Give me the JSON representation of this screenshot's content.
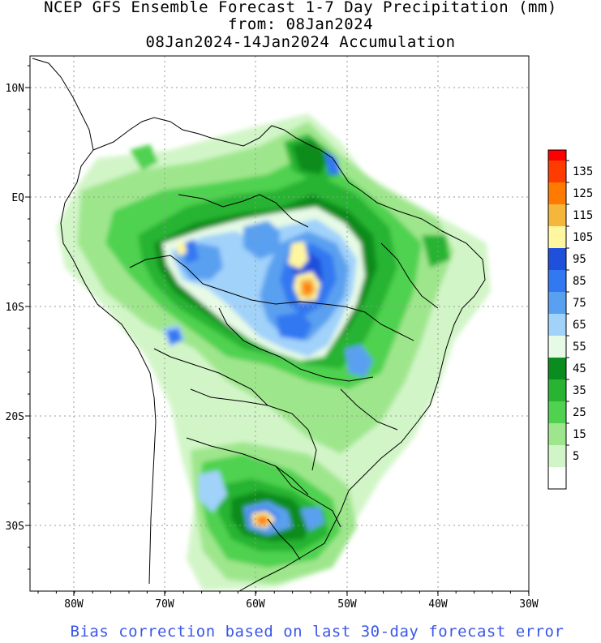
{
  "title": {
    "line1": "NCEP GFS Ensemble Forecast 1-7 Day Precipitation (mm)",
    "line2": "from: 08Jan2024",
    "line3": "08Jan2024-14Jan2024 Accumulation"
  },
  "footer": "Bias correction based on last 30-day forecast error",
  "axes": {
    "lon_labels": [
      "80W",
      "70W",
      "60W",
      "50W",
      "40W",
      "30W"
    ],
    "lat_labels": [
      "10N",
      "EQ",
      "10S",
      "20S",
      "30S"
    ]
  },
  "legend": {
    "labels": [
      "135",
      "125",
      "115",
      "105",
      "95",
      "85",
      "75",
      "65",
      "55",
      "45",
      "35",
      "25",
      "15",
      "5"
    ],
    "colors": [
      "#ff0000",
      "#ff3c00",
      "#ff7a00",
      "#f5b63c",
      "#fff7a0",
      "#1e50dc",
      "#3278f0",
      "#5aa0f0",
      "#a0d2fa",
      "#e6fae6",
      "#0a8c1e",
      "#28b432",
      "#50d250",
      "#9ee68c",
      "#d2f5c8",
      "#ffffff"
    ],
    "units": "mm"
  },
  "map_colors": {
    "c5": "#d2f5c8",
    "c15": "#9ee68c",
    "c25": "#50d250",
    "c35": "#28b432",
    "c45": "#0a8c1e",
    "c55": "#e6fae6",
    "c65": "#a0d2fa",
    "c75": "#5aa0f0",
    "c85": "#3278f0",
    "c95": "#1e50dc",
    "c105": "#fff7a0",
    "c115": "#f5b63c",
    "c125": "#ff7a00",
    "c135": "#ff3c00"
  }
}
